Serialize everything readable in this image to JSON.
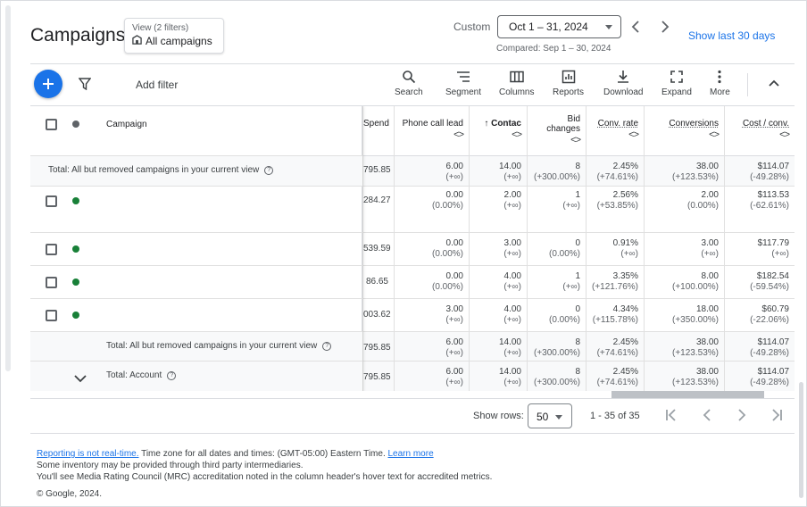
{
  "header": {
    "title": "Campaigns",
    "view_line1": "View (2 filters)",
    "view_line2": "All campaigns",
    "custom_label": "Custom",
    "date_range": "Oct 1 – 31, 2024",
    "compared": "Compared: Sep 1 – 30, 2024",
    "show_last": "Show last 30 days"
  },
  "toolbar": {
    "add_filter": "Add filter",
    "buttons": [
      "Search",
      "Segment",
      "Columns",
      "Reports",
      "Download",
      "Expand",
      "More"
    ]
  },
  "table": {
    "columns": {
      "campaign": "Campaign",
      "spend": "Spend",
      "phone": "Phone call lead",
      "contact": "Contac",
      "bid1": "Bid",
      "bid2": "changes",
      "conv_rate": "Conv. rate",
      "conversions": "Conversions",
      "cost_conv": "Cost / conv."
    },
    "sort_arrow": "↑",
    "sort_glyph": "<>",
    "rows": [
      {
        "label": "Total: All but removed campaigns in your current view",
        "spend": "795.85",
        "phone": [
          "6.00",
          "(+∞)"
        ],
        "contact": [
          "14.00",
          "(+∞)"
        ],
        "bid": [
          "8",
          "(+300.00%)"
        ],
        "conv_rate": [
          "2.45%",
          "(+74.61%)"
        ],
        "conversions": [
          "38.00",
          "(+123.53%)"
        ],
        "cost": [
          "$114.07",
          "(-49.28%)"
        ]
      },
      {
        "label": "",
        "spend": "284.27",
        "phone": [
          "0.00",
          "(0.00%)"
        ],
        "contact": [
          "2.00",
          "(+∞)"
        ],
        "bid": [
          "1",
          "(+∞)"
        ],
        "conv_rate": [
          "2.56%",
          "(+53.85%)"
        ],
        "conversions": [
          "2.00",
          "(0.00%)"
        ],
        "cost": [
          "$113.53",
          "(-62.61%)"
        ]
      },
      {
        "label": "",
        "spend": "539.59",
        "phone": [
          "0.00",
          "(0.00%)"
        ],
        "contact": [
          "3.00",
          "(+∞)"
        ],
        "bid": [
          "0",
          "(0.00%)"
        ],
        "conv_rate": [
          "0.91%",
          "(+∞)"
        ],
        "conversions": [
          "3.00",
          "(+∞)"
        ],
        "cost": [
          "$117.79",
          "(+∞)"
        ]
      },
      {
        "label": "",
        "spend": "86.65",
        "phone": [
          "0.00",
          "(0.00%)"
        ],
        "contact": [
          "4.00",
          "(+∞)"
        ],
        "bid": [
          "1",
          "(+∞)"
        ],
        "conv_rate": [
          "3.35%",
          "(+121.76%)"
        ],
        "conversions": [
          "8.00",
          "(+100.00%)"
        ],
        "cost": [
          "$182.54",
          "(-59.54%)"
        ]
      },
      {
        "label": "",
        "spend": "003.62",
        "phone": [
          "3.00",
          "(+∞)"
        ],
        "contact": [
          "4.00",
          "(+∞)"
        ],
        "bid": [
          "0",
          "(0.00%)"
        ],
        "conv_rate": [
          "4.34%",
          "(+115.78%)"
        ],
        "conversions": [
          "18.00",
          "(+350.00%)"
        ],
        "cost": [
          "$60.79",
          "(-22.06%)"
        ]
      },
      {
        "label": "Total: All but removed campaigns in your current view",
        "spend": "795.85",
        "phone": [
          "6.00",
          "(+∞)"
        ],
        "contact": [
          "14.00",
          "(+∞)"
        ],
        "bid": [
          "8",
          "(+300.00%)"
        ],
        "conv_rate": [
          "2.45%",
          "(+74.61%)"
        ],
        "conversions": [
          "38.00",
          "(+123.53%)"
        ],
        "cost": [
          "$114.07",
          "(-49.28%)"
        ]
      },
      {
        "label": "Total: Account",
        "spend": "795.85",
        "phone": [
          "6.00",
          "(+∞)"
        ],
        "contact": [
          "14.00",
          "(+∞)"
        ],
        "bid": [
          "8",
          "(+300.00%)"
        ],
        "conv_rate": [
          "2.45%",
          "(+74.61%)"
        ],
        "conversions": [
          "38.00",
          "(+123.53%)"
        ],
        "cost": [
          "$114.07",
          "(-49.28%)"
        ]
      }
    ]
  },
  "pager": {
    "show_rows": "Show rows:",
    "rows_value": "50",
    "range": "1 - 35 of 35"
  },
  "footer": {
    "link1": "Reporting is not real-time.",
    "text1": " Time zone for all dates and times: (GMT-05:00) Eastern Time. ",
    "link2": "Learn more",
    "line2": "Some inventory may be provided through third party intermediaries.",
    "line3": "You'll see Media Rating Council (MRC) accreditation noted in the column header's hover text for accredited metrics.",
    "copyright": "© Google, 2024."
  },
  "colors": {
    "accent": "#1a73e8",
    "status_green": "#188038",
    "status_grey": "#5f6368"
  }
}
